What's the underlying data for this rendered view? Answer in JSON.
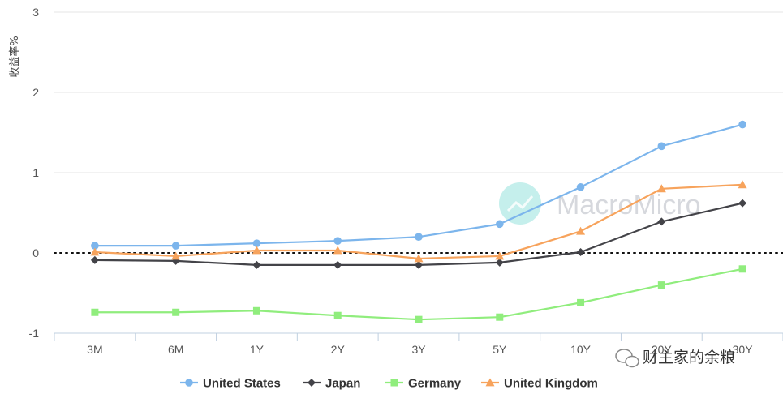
{
  "chart_data": {
    "type": "line",
    "ylabel": "收益率%",
    "ylim": [
      -1,
      3
    ],
    "yticks": [
      -1,
      0,
      1,
      2,
      3
    ],
    "categories": [
      "3M",
      "6M",
      "1Y",
      "2Y",
      "3Y",
      "5Y",
      "10Y",
      "20Y",
      "30Y"
    ],
    "grid": "horizontal",
    "zero_line": "dotted",
    "legend_position": "bottom",
    "series": [
      {
        "name": "United States",
        "color": "#7cb5ec",
        "marker": "circle",
        "values": [
          0.09,
          0.09,
          0.12,
          0.15,
          0.2,
          0.36,
          0.82,
          1.33,
          1.6
        ]
      },
      {
        "name": "Japan",
        "color": "#434348",
        "marker": "diamond",
        "values": [
          -0.09,
          -0.1,
          -0.15,
          -0.15,
          -0.15,
          -0.12,
          0.01,
          0.39,
          0.62
        ]
      },
      {
        "name": "Germany",
        "color": "#90ed7d",
        "marker": "square",
        "values": [
          -0.74,
          -0.74,
          -0.72,
          -0.78,
          -0.83,
          -0.8,
          -0.62,
          -0.4,
          -0.2
        ]
      },
      {
        "name": "United Kingdom",
        "color": "#f7a35c",
        "marker": "triangle",
        "values": [
          0.01,
          -0.04,
          0.03,
          0.03,
          -0.07,
          -0.04,
          0.27,
          0.8,
          0.85
        ]
      }
    ]
  },
  "watermark": {
    "text": "MacroMicro"
  },
  "wechat_label": {
    "text": "财主家的余粮"
  }
}
